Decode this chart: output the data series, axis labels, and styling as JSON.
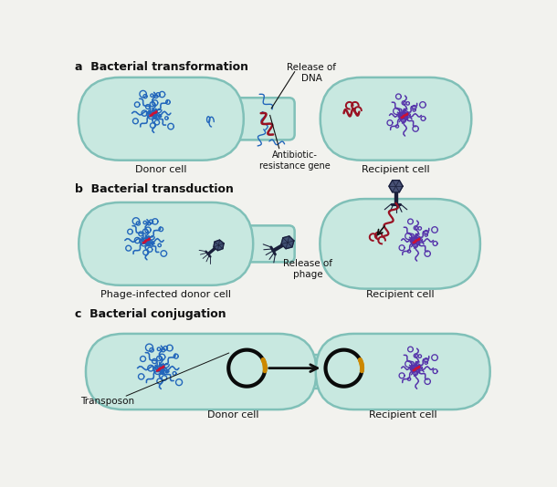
{
  "bg_color": "#f2f2ee",
  "cell_fill": "#c8e8e0",
  "cell_fill2": "#d0ece6",
  "cell_edge": "#80c0b8",
  "cell_lw": 1.8,
  "dna_blue": "#2266bb",
  "dna_purple": "#5533aa",
  "dna_red": "#cc1133",
  "dna_dark_red": "#991122",
  "phage_dark": "#1a1f3a",
  "phage_blue": "#2a3560",
  "plasmid_black": "#0a0a0a",
  "plasmid_gold": "#cc8800",
  "arrow_color": "#111111",
  "label_color": "#111111",
  "label_size": 8,
  "title_size": 9,
  "title_a": "a  Bacterial transformation",
  "title_b": "b  Bacterial transduction",
  "title_c": "c  Bacterial conjugation",
  "label_donor_a": "Donor cell",
  "label_recipient_a": "Recipient cell",
  "label_ar_gene": "Antibiotic-\nresistance gene",
  "label_release_dna": "Release of\nDNA",
  "label_donor_b": "Phage-infected donor cell",
  "label_recipient_b": "Recipient cell",
  "label_release_phage": "Release of\nphage",
  "label_transposon": "Transposon",
  "label_donor_c": "Donor cell",
  "label_recipient_c": "Recipient cell"
}
